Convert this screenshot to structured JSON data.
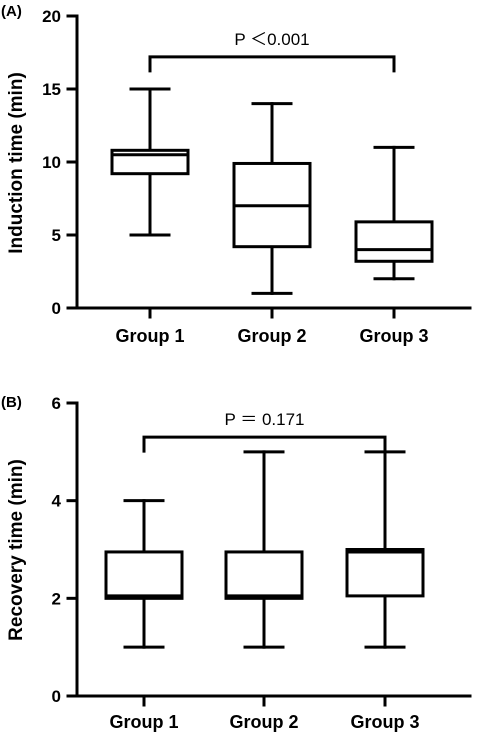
{
  "chart_data": [
    {
      "type": "box",
      "panel_label": "(A)",
      "ylabel": "Induction time (min)",
      "ylim": [
        0,
        20
      ],
      "yticks": [
        0,
        5,
        10,
        15,
        20
      ],
      "categories": [
        "Group 1",
        "Group 2",
        "Group 3"
      ],
      "boxes": [
        {
          "min": 5,
          "q1": 9.2,
          "median": 10.5,
          "q3": 10.8,
          "max": 15
        },
        {
          "min": 1,
          "q1": 4.2,
          "median": 7,
          "q3": 9.9,
          "max": 14
        },
        {
          "min": 2,
          "q1": 3.2,
          "median": 4,
          "q3": 5.9,
          "max": 11
        }
      ],
      "annotation": {
        "text": "P ＜0.001",
        "from": "Group 1",
        "to": "Group 3",
        "y": 17.2
      }
    },
    {
      "type": "box",
      "panel_label": "(B)",
      "ylabel": "Recovery time (min)",
      "ylim": [
        0,
        6
      ],
      "yticks": [
        0,
        2,
        4,
        6
      ],
      "categories": [
        "Group 1",
        "Group 2",
        "Group 3"
      ],
      "boxes": [
        {
          "min": 1,
          "q1": 2,
          "median": 2.05,
          "q3": 2.95,
          "max": 4
        },
        {
          "min": 1,
          "q1": 2,
          "median": 2.05,
          "q3": 2.95,
          "max": 5
        },
        {
          "min": 1,
          "q1": 2.05,
          "median": 2.95,
          "q3": 3,
          "max": 5
        }
      ],
      "annotation": {
        "text": "P ＝ 0.171",
        "from": "Group 1",
        "to": "Group 3",
        "y": 5.3
      }
    }
  ]
}
